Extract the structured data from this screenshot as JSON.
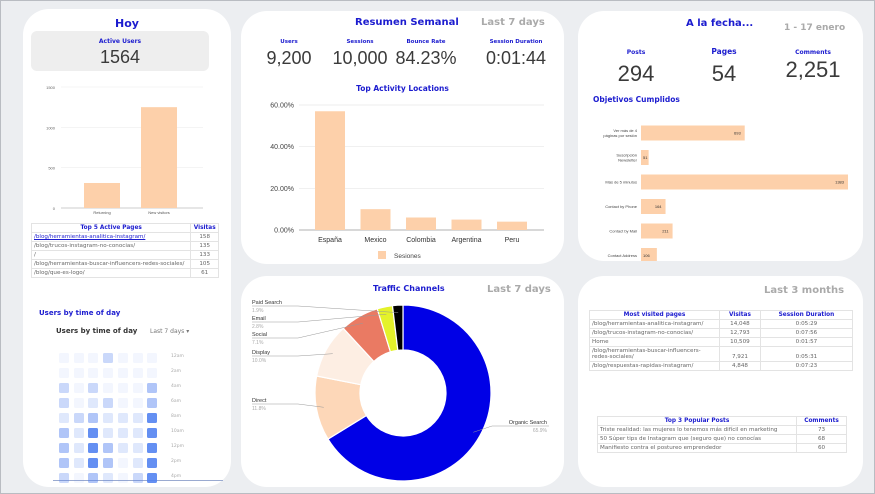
{
  "colors": {
    "accent": "#1c1ccf",
    "bar": "#fdd0aa",
    "heat": "#4f7ff0"
  },
  "hoy": {
    "title": "Hoy",
    "active_users_label": "Active Users",
    "active_users": "1564",
    "chart_data": {
      "type": "bar",
      "categories": [
        "Returning",
        "New visitors"
      ],
      "values": [
        310,
        1250
      ],
      "ylim": [
        0,
        1500
      ],
      "yticks": [
        "0",
        "500",
        "1000",
        "1500"
      ]
    },
    "top_pages": {
      "headers": [
        "Top 5 Active Pages",
        "Visitas"
      ],
      "rows": [
        [
          "/blog/herramientas-analitica-instagram/",
          "158"
        ],
        [
          "/blog/trucos-instagram-no-conocias/",
          "135"
        ],
        [
          "/",
          "133"
        ],
        [
          "/blog/herramientas-buscar-influencers-redes-sociales/",
          "105"
        ],
        [
          "/blog/que-es-logo/",
          "61"
        ]
      ]
    },
    "users_time_title": "Users by time of day",
    "heatmap": {
      "title": "Users by time of day",
      "range": "Last 7 days ▾",
      "rows": [
        "12am",
        "2am",
        "4am",
        "6am",
        "8am",
        "10am",
        "12pm",
        "2pm",
        "4pm"
      ],
      "levels": [
        [
          0,
          0,
          0,
          2,
          0,
          0,
          0
        ],
        [
          0,
          0,
          0,
          0,
          0,
          0,
          0
        ],
        [
          2,
          0,
          2,
          0,
          0,
          0,
          3
        ],
        [
          2,
          0,
          1,
          2,
          0,
          0,
          3
        ],
        [
          1,
          2,
          3,
          1,
          1,
          1,
          5
        ],
        [
          3,
          1,
          5,
          1,
          1,
          1,
          5
        ],
        [
          3,
          1,
          5,
          3,
          1,
          1,
          5
        ],
        [
          3,
          1,
          5,
          3,
          0,
          1,
          5
        ],
        [
          2,
          0,
          3,
          1,
          0,
          2,
          5
        ]
      ]
    }
  },
  "resumen": {
    "title": "Resumen Semanal",
    "range": "Last 7 days",
    "kpis": [
      {
        "label": "Users",
        "value": "9,200"
      },
      {
        "label": "Sessions",
        "value": "10,000"
      },
      {
        "label": "Bounce Rate",
        "value": "84.23%"
      },
      {
        "label": "Session Duration",
        "value": "0:01:44"
      }
    ],
    "chart_title": "Top Activity Locations",
    "chart_data": {
      "type": "bar",
      "categories": [
        "España",
        "Mexico",
        "Colombia",
        "Argentina",
        "Peru"
      ],
      "series": [
        {
          "name": "Sesiones",
          "values": [
            57,
            10,
            6,
            5,
            4
          ]
        }
      ],
      "ylim": [
        0,
        60
      ],
      "yticks": [
        "0.00%",
        "20.00%",
        "40.00%",
        "60.00%"
      ],
      "legend": "bottom"
    }
  },
  "traffic": {
    "title": "Traffic Channels",
    "range": "Last 7 days",
    "chart_data": {
      "type": "pie",
      "donut": true,
      "slices": [
        {
          "name": "Organic Search",
          "value": 65.9,
          "label": "65.9%",
          "color": "#0000e6"
        },
        {
          "name": "Direct",
          "value": 11.8,
          "label": "11.8%",
          "color": "#fdd7b8"
        },
        {
          "name": "Display",
          "value": 10.0,
          "label": "10.0%",
          "color": "#fdeee3"
        },
        {
          "name": "Social",
          "value": 7.1,
          "label": "7.1%",
          "color": "#ea7a63"
        },
        {
          "name": "Email",
          "value": 2.8,
          "label": "2.8%",
          "color": "#e4f22a"
        },
        {
          "name": "Paid Search",
          "value": 1.9,
          "label": "1.9%",
          "color": "#000000"
        }
      ]
    }
  },
  "fecha": {
    "title": "A la fecha...",
    "range": "1 - 17 enero",
    "kpis": [
      {
        "label": "Posts",
        "value": "294"
      },
      {
        "label": "Pages",
        "value": "54"
      },
      {
        "label": "Comments",
        "value": "2,251"
      }
    ],
    "goals_title": "Objetivos Cumplidos",
    "chart_data": {
      "type": "bar",
      "orientation": "horizontal",
      "categories": [
        "Ver más de 4 páginas por sesión",
        "Suscripción Newsletter",
        "Más de 5 minutos",
        "Contact by Phone",
        "Contact by Mail",
        "Contact Address"
      ],
      "values": [
        693,
        51,
        1383,
        164,
        211,
        106
      ]
    }
  },
  "months": {
    "range": "Last 3 months",
    "pages": {
      "headers": [
        "Most visited pages",
        "Visitas",
        "Session Duration"
      ],
      "rows": [
        [
          "/blog/herramientas-analitica-instagram/",
          "14,048",
          "0:05:29"
        ],
        [
          "/blog/trucos-instagram-no-conocias/",
          "12,793",
          "0:07:56"
        ],
        [
          "Home",
          "10,509",
          "0:01:57"
        ],
        [
          "/blog/herramientas-buscar-influencers-redes-sociales/",
          "7,921",
          "0:05:31"
        ],
        [
          "/blog/respuestas-rapidas-instagram/",
          "4,848",
          "0:07:23"
        ]
      ]
    },
    "posts": {
      "headers": [
        "Top 3 Popular Posts",
        "Comments"
      ],
      "rows": [
        [
          "Triste realidad: las mujeres lo tenemos más difícil en marketing",
          "73"
        ],
        [
          "50 Súper tips de Instagram que (seguro que) no conocías",
          "68"
        ],
        [
          "Manifiesto contra el postureo emprendedor",
          "60"
        ]
      ]
    }
  }
}
